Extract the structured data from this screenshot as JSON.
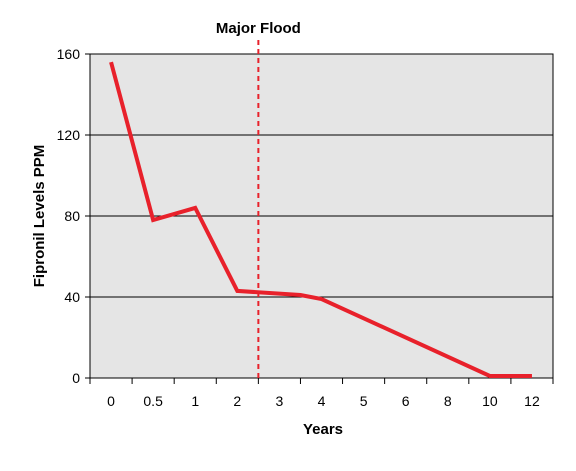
{
  "chart_data": {
    "type": "line",
    "title": "",
    "xlabel": "Years",
    "ylabel": "Fipronil Levels PPM",
    "categories": [
      "0",
      "0.5",
      "1",
      "2",
      "3",
      "4",
      "5",
      "6",
      "8",
      "10",
      "12"
    ],
    "x": [
      0,
      1,
      2,
      3,
      4.5,
      5,
      9,
      10
    ],
    "y": [
      156,
      78,
      84,
      43,
      41,
      39,
      1,
      1
    ],
    "ylim": [
      0,
      160
    ],
    "yticks": [
      0,
      40,
      80,
      120,
      160
    ],
    "grid": true,
    "annotation": {
      "label": "Major Flood",
      "position": 3.5,
      "style": "dashed",
      "color": "#e8212b"
    },
    "colors": {
      "line": "#e8212b",
      "plot_background": "#e5e5e5",
      "grid": "#000000"
    }
  }
}
